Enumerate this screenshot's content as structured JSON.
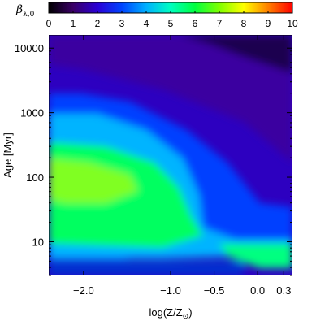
{
  "chart_data": {
    "type": "heatmap",
    "title": "",
    "colorbar": {
      "label": "β",
      "label_subscript": "λ,0",
      "range": [
        0,
        10
      ],
      "ticks": [
        "0",
        "1",
        "2",
        "3",
        "4",
        "5",
        "6",
        "7",
        "8",
        "9",
        "10"
      ],
      "colormap": [
        "#000000",
        "#3a0066",
        "#2a00d6",
        "#0044ff",
        "#00b0ff",
        "#00ffc0",
        "#00ff40",
        "#80ff00",
        "#ffff00",
        "#ff8000",
        "#ff0000"
      ]
    },
    "x_axis": {
      "label": "log(Z/Z",
      "label_sub": "⊙",
      "label_end": ")",
      "range": [
        -2.4,
        0.4
      ],
      "ticks": [
        {
          "value": -2.0,
          "label": "−2.0"
        },
        {
          "value": -1.0,
          "label": "−1.0"
        },
        {
          "value": -0.5,
          "label": "−0.5"
        },
        {
          "value": 0.0,
          "label": "0.0"
        },
        {
          "value": 0.3,
          "label": "0.3"
        }
      ]
    },
    "y_axis": {
      "label": "Age [Myr]",
      "scale": "log",
      "range": [
        3,
        16000
      ],
      "ticks": [
        {
          "value": 10,
          "label": "10"
        },
        {
          "value": 100,
          "label": "100"
        },
        {
          "value": 1000,
          "label": "1000"
        },
        {
          "value": 10000,
          "label": "10000"
        }
      ]
    },
    "grid": false
  }
}
